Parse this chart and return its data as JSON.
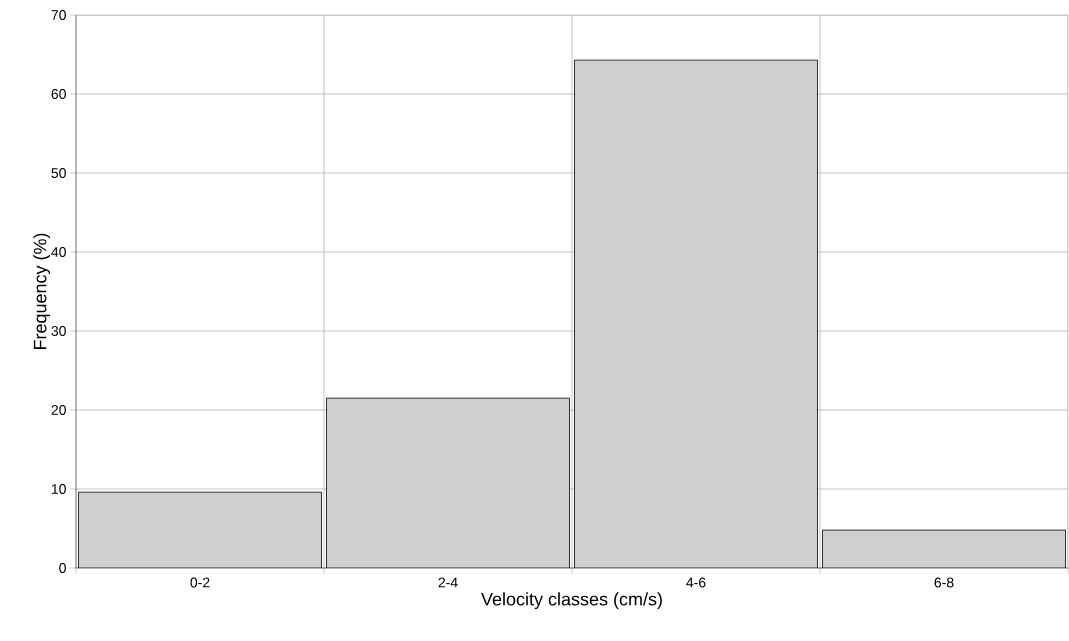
{
  "chart_data": {
    "type": "bar",
    "xlabel": "Velocity classes (cm/s)",
    "ylabel": "Frequency (%)",
    "categories": [
      "0-2",
      "2-4",
      "4-6",
      "6-8"
    ],
    "values": [
      9.6,
      21.5,
      64.3,
      4.8
    ],
    "color": "#cfcfcf",
    "ylim": [
      0,
      70
    ],
    "yticks": [
      0,
      10,
      20,
      30,
      40,
      50,
      60,
      70
    ],
    "grid": true
  }
}
